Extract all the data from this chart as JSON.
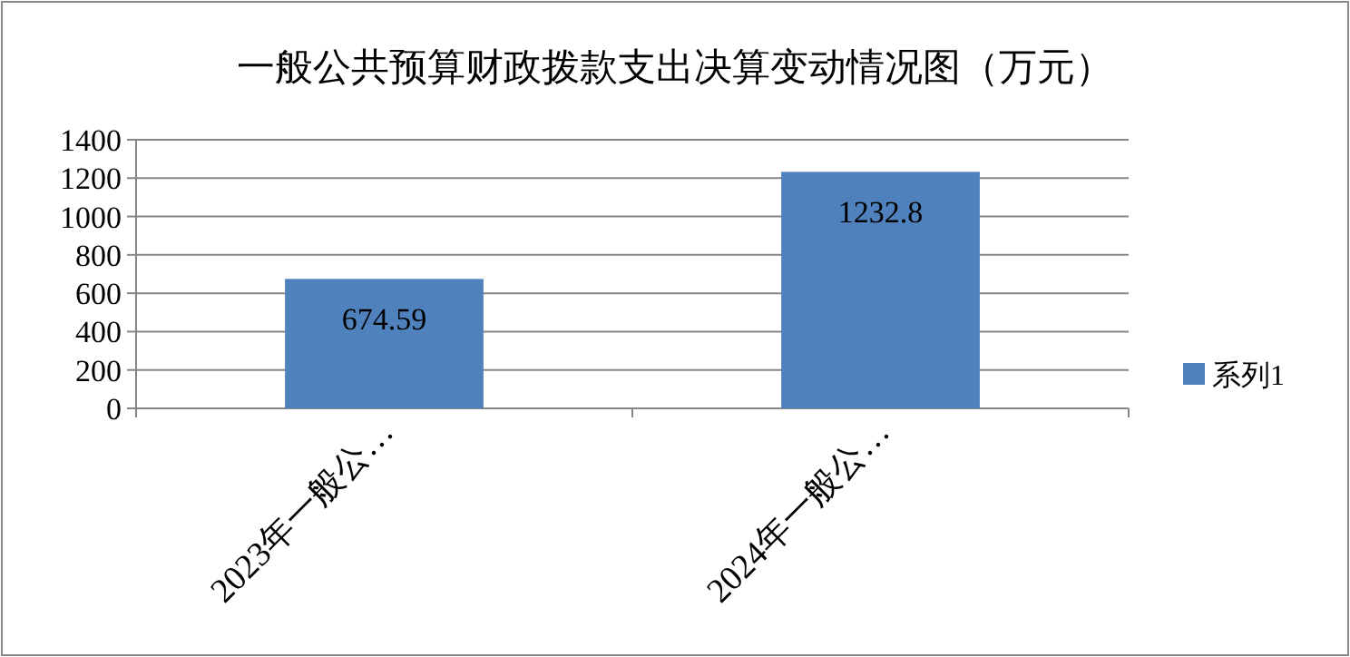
{
  "chart_data": {
    "type": "bar",
    "title": "一般公共预算财政拨款支出决算变动情况图（万元）",
    "categories": [
      "2023年一般公…",
      "2024年一般公…"
    ],
    "series": [
      {
        "name": "系列1",
        "color": "#4f81bd",
        "values": [
          674.59,
          1232.8
        ]
      }
    ],
    "ylim": [
      0,
      1400
    ],
    "yticks": [
      0,
      200,
      400,
      600,
      800,
      1000,
      1200,
      1400
    ],
    "grid": "y",
    "data_labels": true,
    "legend": "right"
  }
}
